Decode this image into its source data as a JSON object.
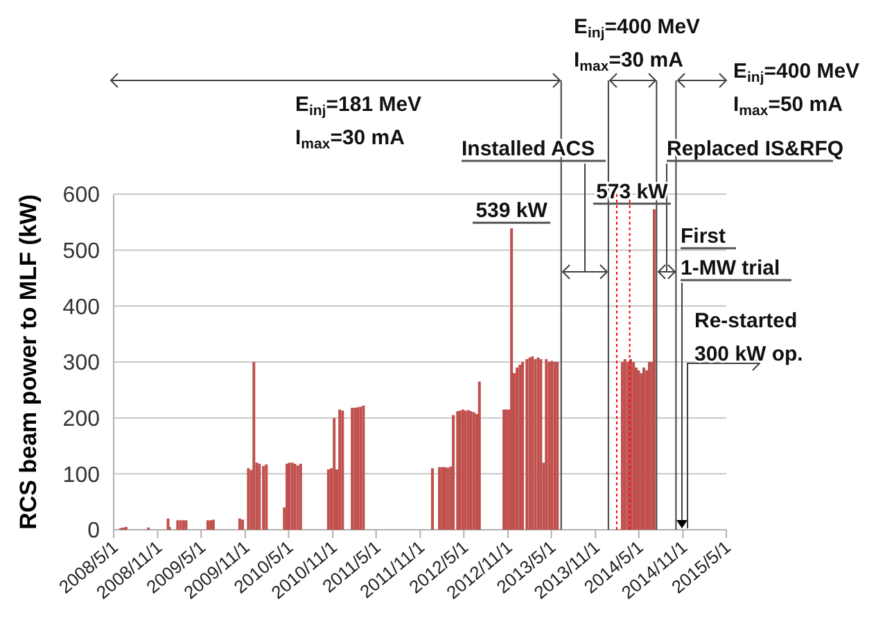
{
  "chart_data": {
    "type": "bar",
    "ylabel": "RCS beam power to MLF (kW)",
    "xlim": [
      "2008-05-01",
      "2015-05-01"
    ],
    "xticks": [
      {
        "value": "2008-05-01",
        "label": "2008/5/1"
      },
      {
        "value": "2008-11-01",
        "label": "2008/11/1"
      },
      {
        "value": "2009-05-01",
        "label": "2009/5/1"
      },
      {
        "value": "2009-11-01",
        "label": "2009/11/1"
      },
      {
        "value": "2010-05-01",
        "label": "2010/5/1"
      },
      {
        "value": "2010-11-01",
        "label": "2010/11/1"
      },
      {
        "value": "2011-05-01",
        "label": "2011/5/1"
      },
      {
        "value": "2011-11-01",
        "label": "2011/11/1"
      },
      {
        "value": "2012-05-01",
        "label": "2012/5/1"
      },
      {
        "value": "2012-11-01",
        "label": "2012/11/1"
      },
      {
        "value": "2013-05-01",
        "label": "2013/5/1"
      },
      {
        "value": "2013-11-01",
        "label": "2013/11/1"
      },
      {
        "value": "2014-05-01",
        "label": "2014/5/1"
      },
      {
        "value": "2014-11-01",
        "label": "2014/11/1"
      },
      {
        "value": "2015-05-01",
        "label": "2015/5/1"
      }
    ],
    "ylim": [
      0,
      600
    ],
    "yticks": [
      0,
      100,
      200,
      300,
      400,
      500,
      600
    ],
    "grid": "y",
    "series": [
      {
        "color": "#c0504d",
        "x": [
          "2008-05-30",
          "2008-06-10",
          "2008-06-22",
          "2008-09-23",
          "2008-12-14",
          "2008-12-20",
          "2009-01-23",
          "2009-02-04",
          "2009-02-16",
          "2009-02-27",
          "2009-05-29",
          "2009-06-10",
          "2009-06-21",
          "2009-10-09",
          "2009-10-21",
          "2009-11-14",
          "2009-11-26",
          "2009-12-07",
          "2009-12-19",
          "2009-12-30",
          "2010-01-16",
          "2010-01-28",
          "2010-04-13",
          "2010-04-24",
          "2010-05-04",
          "2010-05-16",
          "2010-05-27",
          "2010-06-08",
          "2010-06-20",
          "2010-10-14",
          "2010-10-26",
          "2010-11-07",
          "2010-11-18",
          "2010-11-30",
          "2010-12-12",
          "2011-01-21",
          "2011-02-02",
          "2011-02-13",
          "2011-02-25",
          "2011-03-09",
          "2011-12-22",
          "2012-01-20",
          "2012-02-01",
          "2012-02-12",
          "2012-02-24",
          "2012-03-07",
          "2012-03-18",
          "2012-04-05",
          "2012-04-15",
          "2012-04-27",
          "2012-05-08",
          "2012-05-20",
          "2012-05-31",
          "2012-06-12",
          "2012-06-24",
          "2012-07-05",
          "2012-10-15",
          "2012-10-26",
          "2012-11-06",
          "2012-11-16",
          "2012-11-27",
          "2012-12-09",
          "2012-12-21",
          "2013-01-01",
          "2013-01-19",
          "2013-01-31",
          "2013-02-11",
          "2013-02-23",
          "2013-03-07",
          "2013-03-18",
          "2013-03-30",
          "2013-04-10",
          "2013-04-22",
          "2013-05-03",
          "2013-05-15",
          "2013-05-26",
          "2014-02-21",
          "2014-03-04",
          "2014-03-16",
          "2014-03-28",
          "2014-04-09",
          "2014-04-20",
          "2014-04-30",
          "2014-05-11",
          "2014-05-22",
          "2014-06-03",
          "2014-06-14",
          "2014-06-26",
          "2014-07-04"
        ],
        "values": [
          3,
          4,
          5,
          4,
          20,
          5,
          17,
          17,
          17,
          17,
          17,
          17,
          18,
          20,
          18,
          110,
          107,
          300,
          120,
          118,
          114,
          117,
          40,
          118,
          120,
          120,
          118,
          115,
          118,
          108,
          110,
          200,
          108,
          215,
          213,
          218,
          218,
          219,
          220,
          222,
          110,
          112,
          112,
          112,
          111,
          113,
          205,
          212,
          213,
          215,
          213,
          214,
          212,
          210,
          207,
          265,
          215,
          215,
          215,
          539,
          280,
          290,
          295,
          300,
          305,
          308,
          310,
          305,
          308,
          305,
          120,
          305,
          300,
          302,
          300,
          300,
          300,
          305,
          300,
          305,
          300,
          290,
          285,
          280,
          290,
          285,
          300,
          300,
          573
        ]
      }
    ],
    "ref_lines": [
      {
        "axis": "x",
        "value": "2013-06-11",
        "color": "#404040"
      },
      {
        "axis": "x",
        "value": "2013-12-25",
        "color": "#404040"
      },
      {
        "axis": "x",
        "value": "2014-07-14",
        "color": "#404040"
      },
      {
        "axis": "x",
        "value": "2014-10-03",
        "color": "#404040"
      },
      {
        "axis": "x",
        "value": "2014-01-29",
        "color": "#ff0000",
        "line_style": "dotted"
      },
      {
        "axis": "x",
        "value": "2014-03-24",
        "color": "#ff0000",
        "line_style": "dotted"
      }
    ],
    "annotations": [
      "E$_{inj}$=181 MeV",
      "I$_{max}$=30 mA",
      "E$_{inj}$=400 MeV",
      "I$_{max}$=30 mA",
      "E$_{inj}$=400 MeV",
      "I$_{max}$=50 mA",
      "Installed ACS",
      {
        "text": "539 kW",
        "x": "2012-11-16",
        "y": 539
      },
      {
        "text": "573 kW",
        "x": "2014-07-04",
        "y": 573
      },
      "Replaced IS&RFQ",
      "First",
      "1-MW trial",
      "Re-started",
      "300 kW op."
    ]
  }
}
